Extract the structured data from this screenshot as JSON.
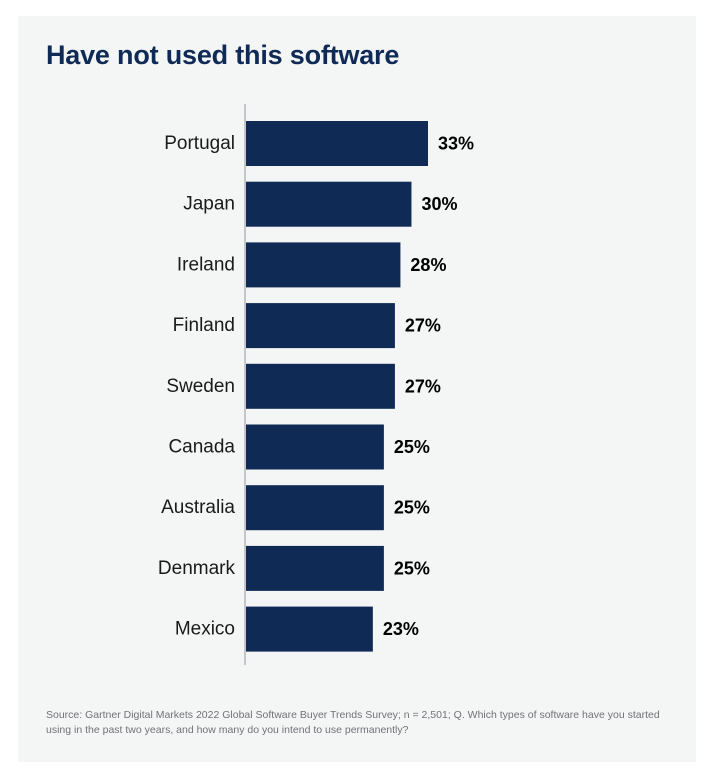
{
  "colors": {
    "bar": "#0f2a55",
    "axis": "#c4c6c9",
    "background": "#f4f5f5",
    "title": "#0f2a55"
  },
  "source": "Source: Gartner Digital Markets 2022 Global Software Buyer Trends Survey; n = 2,501; Q. Which types of software have you started using in the past two years, and how many do you intend to use permanently?",
  "chart_data": {
    "type": "bar",
    "orientation": "horizontal",
    "title": "Have not used this software",
    "categories": [
      "Portugal",
      "Japan",
      "Ireland",
      "Finland",
      "Sweden",
      "Canada",
      "Australia",
      "Denmark",
      "Mexico"
    ],
    "values": [
      33,
      30,
      28,
      27,
      27,
      25,
      25,
      25,
      23
    ],
    "value_labels": [
      "33%",
      "30%",
      "28%",
      "27%",
      "27%",
      "25%",
      "25%",
      "25%",
      "23%"
    ],
    "unit": "%",
    "xlim": [
      0,
      33
    ],
    "grid": false,
    "legend": "none"
  }
}
